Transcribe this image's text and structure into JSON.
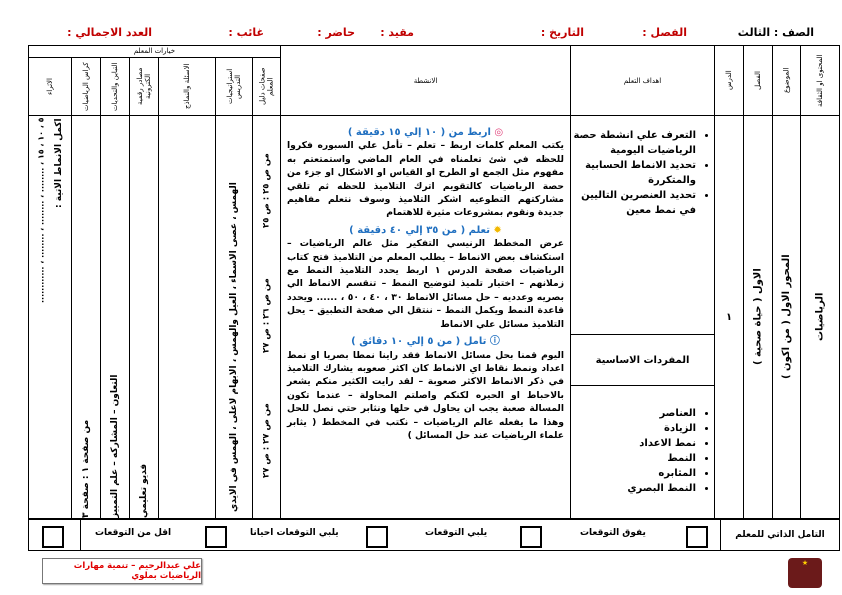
{
  "header": {
    "grade": "الصف : الثالث",
    "class": "الفصل :",
    "date": "التاريخ :",
    "enrolled": "مقيد :",
    "present": "حاضر :",
    "absent": "غائب :",
    "total": "العدد الاجمالي :"
  },
  "columns": {
    "content": "المحتوى او الثقافة",
    "topic": "الموضوع",
    "chapter": "الفصل",
    "lesson": "الدرس",
    "objectives": "اهداف التعلم",
    "activities": "الانشطة",
    "teacher_options": "خيارات المعلم",
    "guide_pages": "صفحات دليل المعلم",
    "strategies": "استراتيجيات التدريس",
    "questions": "الاسئلة والنماذج",
    "resources": "مصادر رقمية الكترونية",
    "differentiation": "التباين والتحديات",
    "workbook": "كراس الرياضيات",
    "enrichment": "الاثراء"
  },
  "row": {
    "content": "الرياضيات",
    "topic": "المحور الاول ( من اكون )",
    "chapter": "الاول ( حياة صحية )",
    "lesson": "١",
    "objectives": [
      "التعرف علي انشطة حصة الرياضيات اليومية",
      "تحديد الانماط الحسابية والمتكررة",
      "تحديد العنصرين التاليين في نمط معين"
    ],
    "vocab_title": "المفردات الاساسية",
    "vocab": [
      "العناصر",
      "الزيادة",
      "نمط الاعداد",
      "النمط",
      "المثابره",
      "النمط البصري"
    ],
    "activities": [
      {
        "icon": "rings-icon",
        "title": "اربط من ( ١٠ إلي ١٥ دقيقة )",
        "text": "يكتب المعلم كلمات اربط – تعلم – تأمل علي السبوره فكروا للحظه في شئ تعلمناه في العام الماضي واستمتعتم به مفهوم مثل الجمع او الطرح او القياس او الاشكال او جزء من حصة الرياضيات كالتقويم اترك التلاميذ للحظه ثم تلقي مشاركتهم التطوعيه اشكر التلاميذ وسوف نتعلم مفاهيم جديدة ونقوم بمشروعات مثيرة للاهتمام"
      },
      {
        "icon": "lightbulb-icon",
        "title": "تعلم ( من ٣٥ إلي ٤٠ دقيقة )",
        "text": "عرض المخطط الرنيسي التفكير مثل عالم الرياضيات – استكشاف بعض الانماط – يطلب المعلم من التلاميذ فتح كتاب الرياضيات صفحة الدرس ١ اربط يحدد التلاميذ النمط مع زملانهم – اختيار تلميذ لتوضيح النمط – تنقسم الانماط الي بصريه وعدديه – حل مسائل الانماط ٣٠ ، ٤٠ ، ٥٠ ، ...... ويحدد قاعدة النمط ويكمل النمط – ننتقل الي صفحة التطبيق – يحل التلاميذ مسائل علي الانماط"
      },
      {
        "icon": "question-bubble-icon",
        "title": "تامل ( من ٥ إلي ١٠ دقائق )",
        "text": "اليوم قمنا بحل مسائل الانماط فقد راينا نمطا بصريا او نمط اعداد ونمط نقاط اي الانماط كان اكثر صعوبه يشارك التلاميذ في ذكر الانماط الاكثر صعوبة – لقد رايت الكثير منكم يشعر بالاحباط او الحيره لكنكم واصلتم المحاولة – عندما تكون المسالة صعبة يجب ان يحاول في حلها ونثابر حتي نصل للحل وهذا ما يفعله عالم الرياضيات – نكتب في المخطط ( يثابر علماء الرياضيات عند حل المسائل )"
      }
    ],
    "guide_pages": [
      "من ص ٢٥ : ص ٢٥",
      "من ص ٢٦ : ص ٢٧",
      "من ص ٢٧ : ص ٢٧"
    ],
    "strategies": "الهمس ، عصى الاسماء ، العيل والهمس ، الابهام لاعلى ، الهمس في الايدي",
    "questions": "",
    "resources": "فديو تعليمي",
    "differentiation": "التعاون – المشاركه – علم التمييز",
    "workbook": "من صفحة ١ : صفحة ٣",
    "enrichment_title": "اكمل الانماط الاتية :",
    "enrichment": "٥ ، ١٠ ، ١٥ ، ........ ، ........ ، ........ ، ............"
  },
  "reflection": {
    "label": "التامل الذاتي للمعلم",
    "options": [
      "يفوق التوقعات",
      "يلبي التوقعات",
      "يلبي التوقعات احيانا",
      "اقل من التوقعات"
    ]
  },
  "footer": {
    "credit": "علي عبدالرحيم – تنمية مهارات الرياضيات بملوي",
    "logo_text": "المميز التعليمي"
  }
}
